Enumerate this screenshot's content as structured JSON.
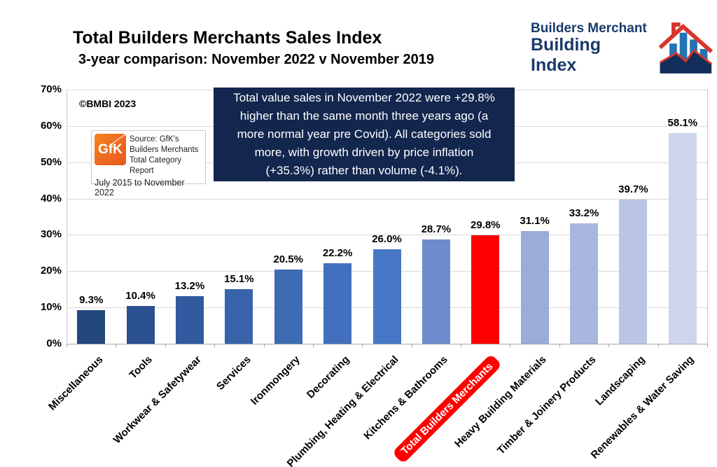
{
  "copyright": "©BMBI 2023",
  "brand": {
    "line1": "Builders Merchant",
    "line2": "Building Index",
    "navy": "#1A3A6B",
    "red": "#D8362C",
    "blue": "#2473B5"
  },
  "source_box": {
    "logo_text": "GfK",
    "lines": [
      "Source: GfK's",
      "Builders Merchants",
      "Total Category Report"
    ],
    "bottom_line": "July 2015 to November 2022"
  },
  "annotation": {
    "bg_color": "#12264E",
    "text_color": "#FFFFFF",
    "lines": [
      "Total value sales in November 2022 were +29.8%",
      "higher than the same month three years ago (a",
      "more normal year pre Covid). All categories sold",
      "more, with growth driven by price inflation",
      "(+35.3%) rather than volume (-4.1%)."
    ]
  },
  "chart_data": {
    "type": "bar",
    "title": "Total Builders Merchants Sales Index",
    "subtitle": " 3-year comparison: November 2022 v November 2019",
    "xlabel": "",
    "ylabel": "",
    "ylim": [
      0,
      70
    ],
    "ytick_step": 10,
    "ytick_suffix": "%",
    "grid": true,
    "categories": [
      "Miscellaneous",
      "Tools",
      "Workwear & Safetywear",
      "Services",
      "Ironmongery",
      "Decorating",
      "Plumbing, Heating & Electrical",
      "Kitchens & Bathrooms",
      "Total Builders Merchants",
      "Heavy Building Materials",
      "Timber & Joinery Products",
      "Landscaping",
      "Renewables & Water Saving"
    ],
    "values": [
      9.3,
      10.4,
      13.2,
      15.1,
      20.5,
      22.2,
      26.0,
      28.7,
      29.8,
      31.1,
      33.2,
      39.7,
      58.1
    ],
    "labels": [
      "9.3%",
      "10.4%",
      "13.2%",
      "15.1%",
      "20.5%",
      "22.2%",
      "26.0%",
      "28.7%",
      "29.8%",
      "31.1%",
      "33.2%",
      "39.7%",
      "58.1%"
    ],
    "bar_colors": [
      "#24477E",
      "#2B5191",
      "#315A9F",
      "#3763AA",
      "#3D6BB4",
      "#4270BD",
      "#4777C7",
      "#6E8CCD",
      "#FF0000",
      "#9CACD8",
      "#A9B6DE",
      "#BAC5E5",
      "#CDD6EC"
    ],
    "highlight_index": 8,
    "highlight_color": "#FF0000"
  }
}
